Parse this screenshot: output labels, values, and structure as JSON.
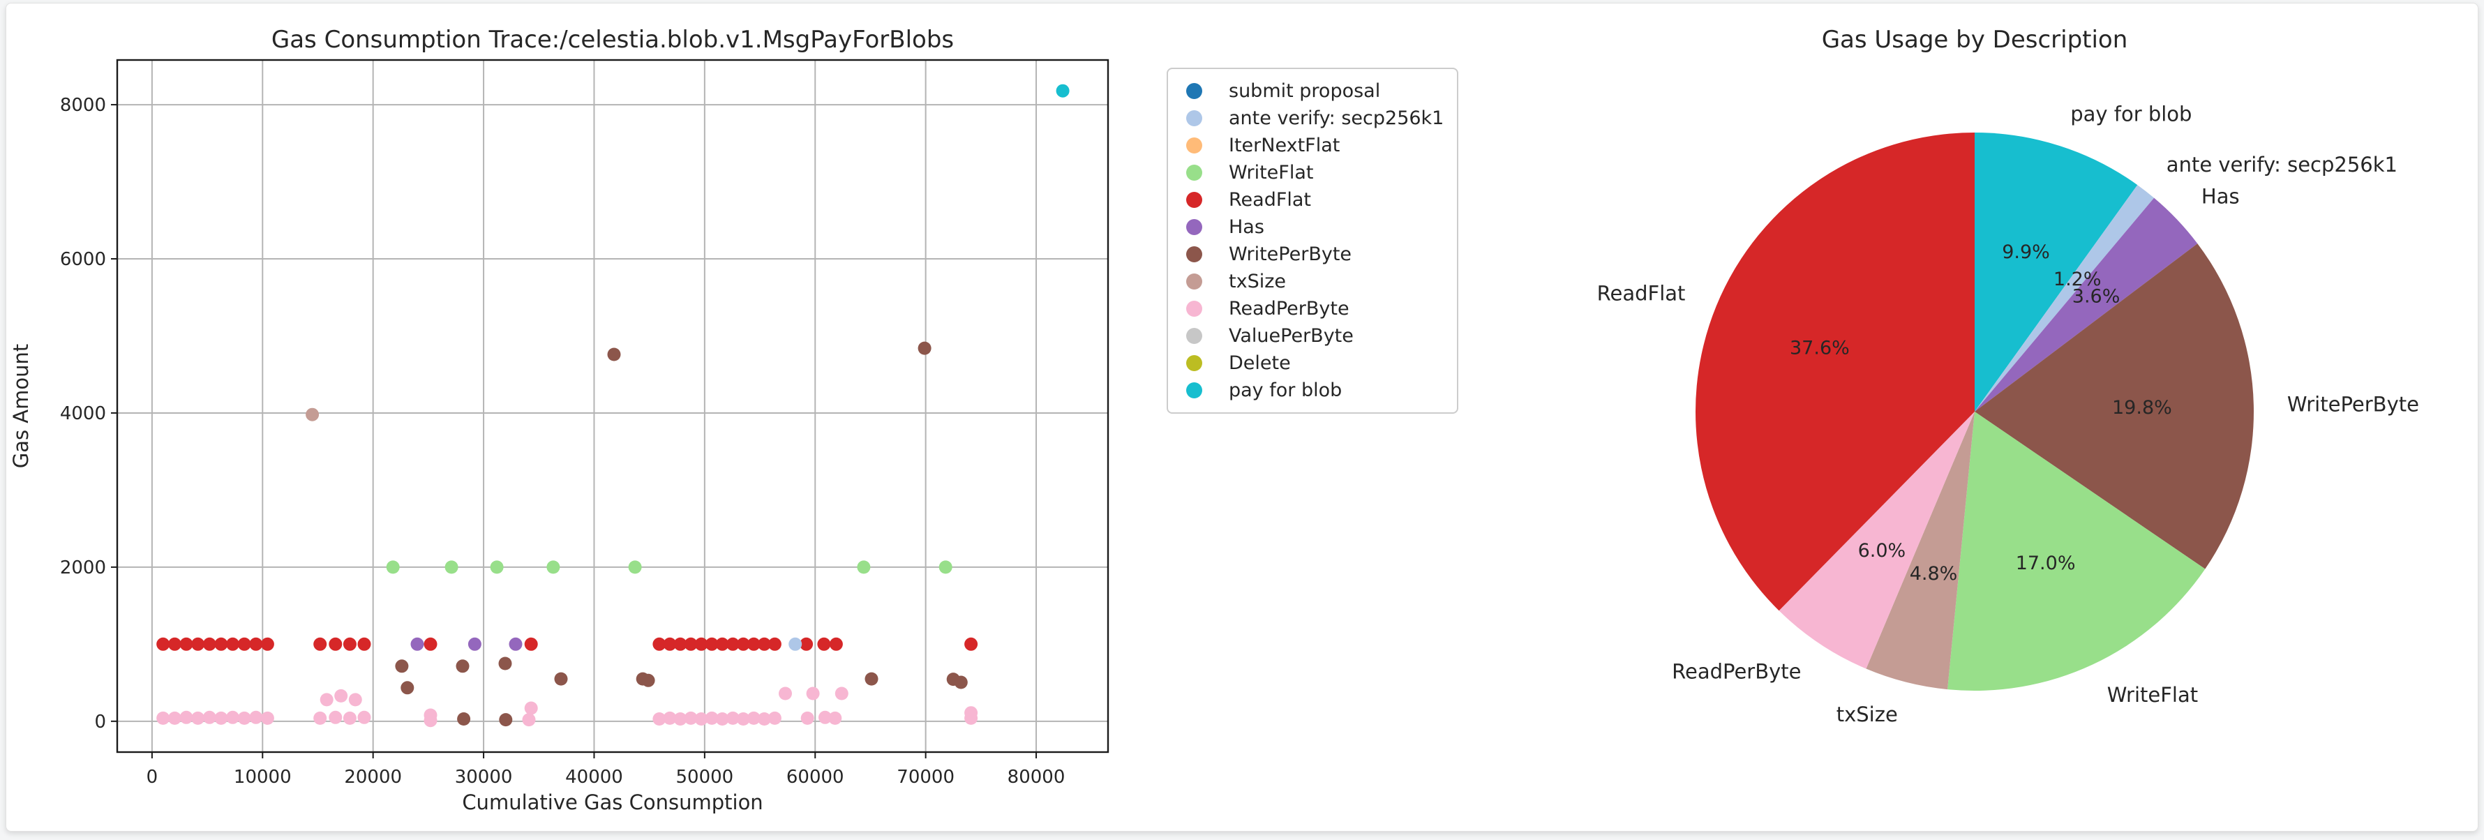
{
  "page": {
    "background": "#f4f5f6",
    "figure_background": "#ffffff"
  },
  "chart_data": [
    {
      "type": "scatter",
      "title": "Gas Consumption Trace:/celestia.blob.v1.MsgPayForBlobs",
      "xlabel": "Cumulative Gas Consumption",
      "ylabel": "Gas Amount",
      "xlim": [
        -3150,
        86500
      ],
      "ylim": [
        -400,
        8580
      ],
      "xticks": [
        0,
        10000,
        20000,
        30000,
        40000,
        50000,
        60000,
        70000,
        80000
      ],
      "yticks": [
        0,
        2000,
        4000,
        6000,
        8000
      ],
      "grid": true,
      "grid_color": "#b4b4b4",
      "legend_position": "outside-right",
      "legend": [
        {
          "label": "submit proposal",
          "color": "#1f77b4"
        },
        {
          "label": "ante verify: secp256k1",
          "color": "#aec7e8"
        },
        {
          "label": "IterNextFlat",
          "color": "#ffbb78"
        },
        {
          "label": "WriteFlat",
          "color": "#98df8a"
        },
        {
          "label": "ReadFlat",
          "color": "#d62728"
        },
        {
          "label": "Has",
          "color": "#9467bd"
        },
        {
          "label": "WritePerByte",
          "color": "#8c564b"
        },
        {
          "label": "txSize",
          "color": "#c49c94"
        },
        {
          "label": "ReadPerByte",
          "color": "#f7b6d2"
        },
        {
          "label": "ValuePerByte",
          "color": "#c7c7c7"
        },
        {
          "label": "Delete",
          "color": "#bcbd22"
        },
        {
          "label": "pay for blob",
          "color": "#17becf"
        }
      ],
      "series": [
        {
          "name": "submit proposal",
          "color": "#1f77b4",
          "points": []
        },
        {
          "name": "IterNextFlat",
          "color": "#ffbb78",
          "points": []
        },
        {
          "name": "ValuePerByte",
          "color": "#c7c7c7",
          "points": []
        },
        {
          "name": "Delete",
          "color": "#bcbd22",
          "points": []
        },
        {
          "name": "ReadPerByte",
          "color": "#f7b6d2",
          "points": [
            [
              1000,
              40
            ],
            [
              2050,
              40
            ],
            [
              3100,
              50
            ],
            [
              4150,
              40
            ],
            [
              5200,
              50
            ],
            [
              6250,
              40
            ],
            [
              7300,
              50
            ],
            [
              8350,
              40
            ],
            [
              9400,
              50
            ],
            [
              10450,
              40
            ],
            [
              15200,
              40
            ],
            [
              16600,
              50
            ],
            [
              17900,
              40
            ],
            [
              19200,
              50
            ],
            [
              15800,
              280
            ],
            [
              17100,
              330
            ],
            [
              18400,
              280
            ],
            [
              25200,
              80
            ],
            [
              25200,
              10
            ],
            [
              34300,
              170
            ],
            [
              34100,
              20
            ],
            [
              45900,
              30
            ],
            [
              46850,
              40
            ],
            [
              47800,
              30
            ],
            [
              48750,
              40
            ],
            [
              49700,
              30
            ],
            [
              50650,
              40
            ],
            [
              51600,
              30
            ],
            [
              52550,
              40
            ],
            [
              53500,
              30
            ],
            [
              54450,
              40
            ],
            [
              55400,
              30
            ],
            [
              56350,
              40
            ],
            [
              59300,
              40
            ],
            [
              60900,
              50
            ],
            [
              61800,
              40
            ],
            [
              57300,
              360
            ],
            [
              59800,
              360
            ],
            [
              62400,
              360
            ],
            [
              74100,
              40
            ],
            [
              74100,
              110
            ]
          ]
        },
        {
          "name": "ReadFlat",
          "color": "#d62728",
          "points": [
            [
              1000,
              1000
            ],
            [
              2050,
              1000
            ],
            [
              3100,
              1000
            ],
            [
              4150,
              1000
            ],
            [
              5200,
              1000
            ],
            [
              6250,
              1000
            ],
            [
              7300,
              1000
            ],
            [
              8350,
              1000
            ],
            [
              9400,
              1000
            ],
            [
              10450,
              1000
            ],
            [
              15200,
              1000
            ],
            [
              16600,
              1000
            ],
            [
              17900,
              1000
            ],
            [
              19200,
              1000
            ],
            [
              25200,
              1000
            ],
            [
              34300,
              1000
            ],
            [
              45900,
              1000
            ],
            [
              46850,
              1000
            ],
            [
              47800,
              1000
            ],
            [
              48750,
              1000
            ],
            [
              49700,
              1000
            ],
            [
              50650,
              1000
            ],
            [
              51600,
              1000
            ],
            [
              52550,
              1000
            ],
            [
              53500,
              1000
            ],
            [
              54450,
              1000
            ],
            [
              55400,
              1000
            ],
            [
              56350,
              1000
            ],
            [
              59200,
              1000
            ],
            [
              60800,
              1000
            ],
            [
              61900,
              1000
            ],
            [
              74100,
              1000
            ]
          ]
        },
        {
          "name": "Has",
          "color": "#9467bd",
          "points": [
            [
              24000,
              1000
            ],
            [
              29200,
              1000
            ],
            [
              32900,
              1000
            ]
          ]
        },
        {
          "name": "WritePerByte",
          "color": "#8c564b",
          "points": [
            [
              22600,
              715
            ],
            [
              23100,
              435
            ],
            [
              28100,
              715
            ],
            [
              28200,
              30
            ],
            [
              31950,
              750
            ],
            [
              32000,
              20
            ],
            [
              37000,
              550
            ],
            [
              44400,
              550
            ],
            [
              44900,
              530
            ],
            [
              65100,
              550
            ],
            [
              72500,
              545
            ],
            [
              73200,
              505
            ],
            [
              41800,
              4760
            ],
            [
              69900,
              4840
            ]
          ]
        },
        {
          "name": "txSize",
          "color": "#c49c94",
          "points": [
            [
              14500,
              3980
            ]
          ]
        },
        {
          "name": "WriteFlat",
          "color": "#98df8a",
          "points": [
            [
              21800,
              2000
            ],
            [
              27100,
              2000
            ],
            [
              31200,
              2000
            ],
            [
              36300,
              2000
            ],
            [
              43700,
              2000
            ],
            [
              64400,
              2000
            ],
            [
              71800,
              2000
            ]
          ]
        },
        {
          "name": "ante verify: secp256k1",
          "color": "#aec7e8",
          "points": [
            [
              58200,
              1000
            ]
          ]
        },
        {
          "name": "pay for blob",
          "color": "#17becf",
          "points": [
            [
              82400,
              8180
            ]
          ]
        }
      ]
    },
    {
      "type": "pie",
      "title": "Gas Usage by Description",
      "start": "top",
      "direction": "clockwise",
      "slices": [
        {
          "label": "pay for blob",
          "pct": 9.9,
          "color": "#17becf"
        },
        {
          "label": "ante verify: secp256k1",
          "pct": 1.2,
          "color": "#aec7e8"
        },
        {
          "label": "Has",
          "pct": 3.6,
          "color": "#9467bd"
        },
        {
          "label": "WritePerByte",
          "pct": 19.8,
          "color": "#8c564b"
        },
        {
          "label": "WriteFlat",
          "pct": 17.0,
          "color": "#98df8a"
        },
        {
          "label": "txSize",
          "pct": 4.8,
          "color": "#c49c94"
        },
        {
          "label": "ReadPerByte",
          "pct": 6.0,
          "color": "#f7b6d2"
        },
        {
          "label": "ReadFlat",
          "pct": 37.6,
          "color": "#d62728"
        }
      ]
    }
  ]
}
